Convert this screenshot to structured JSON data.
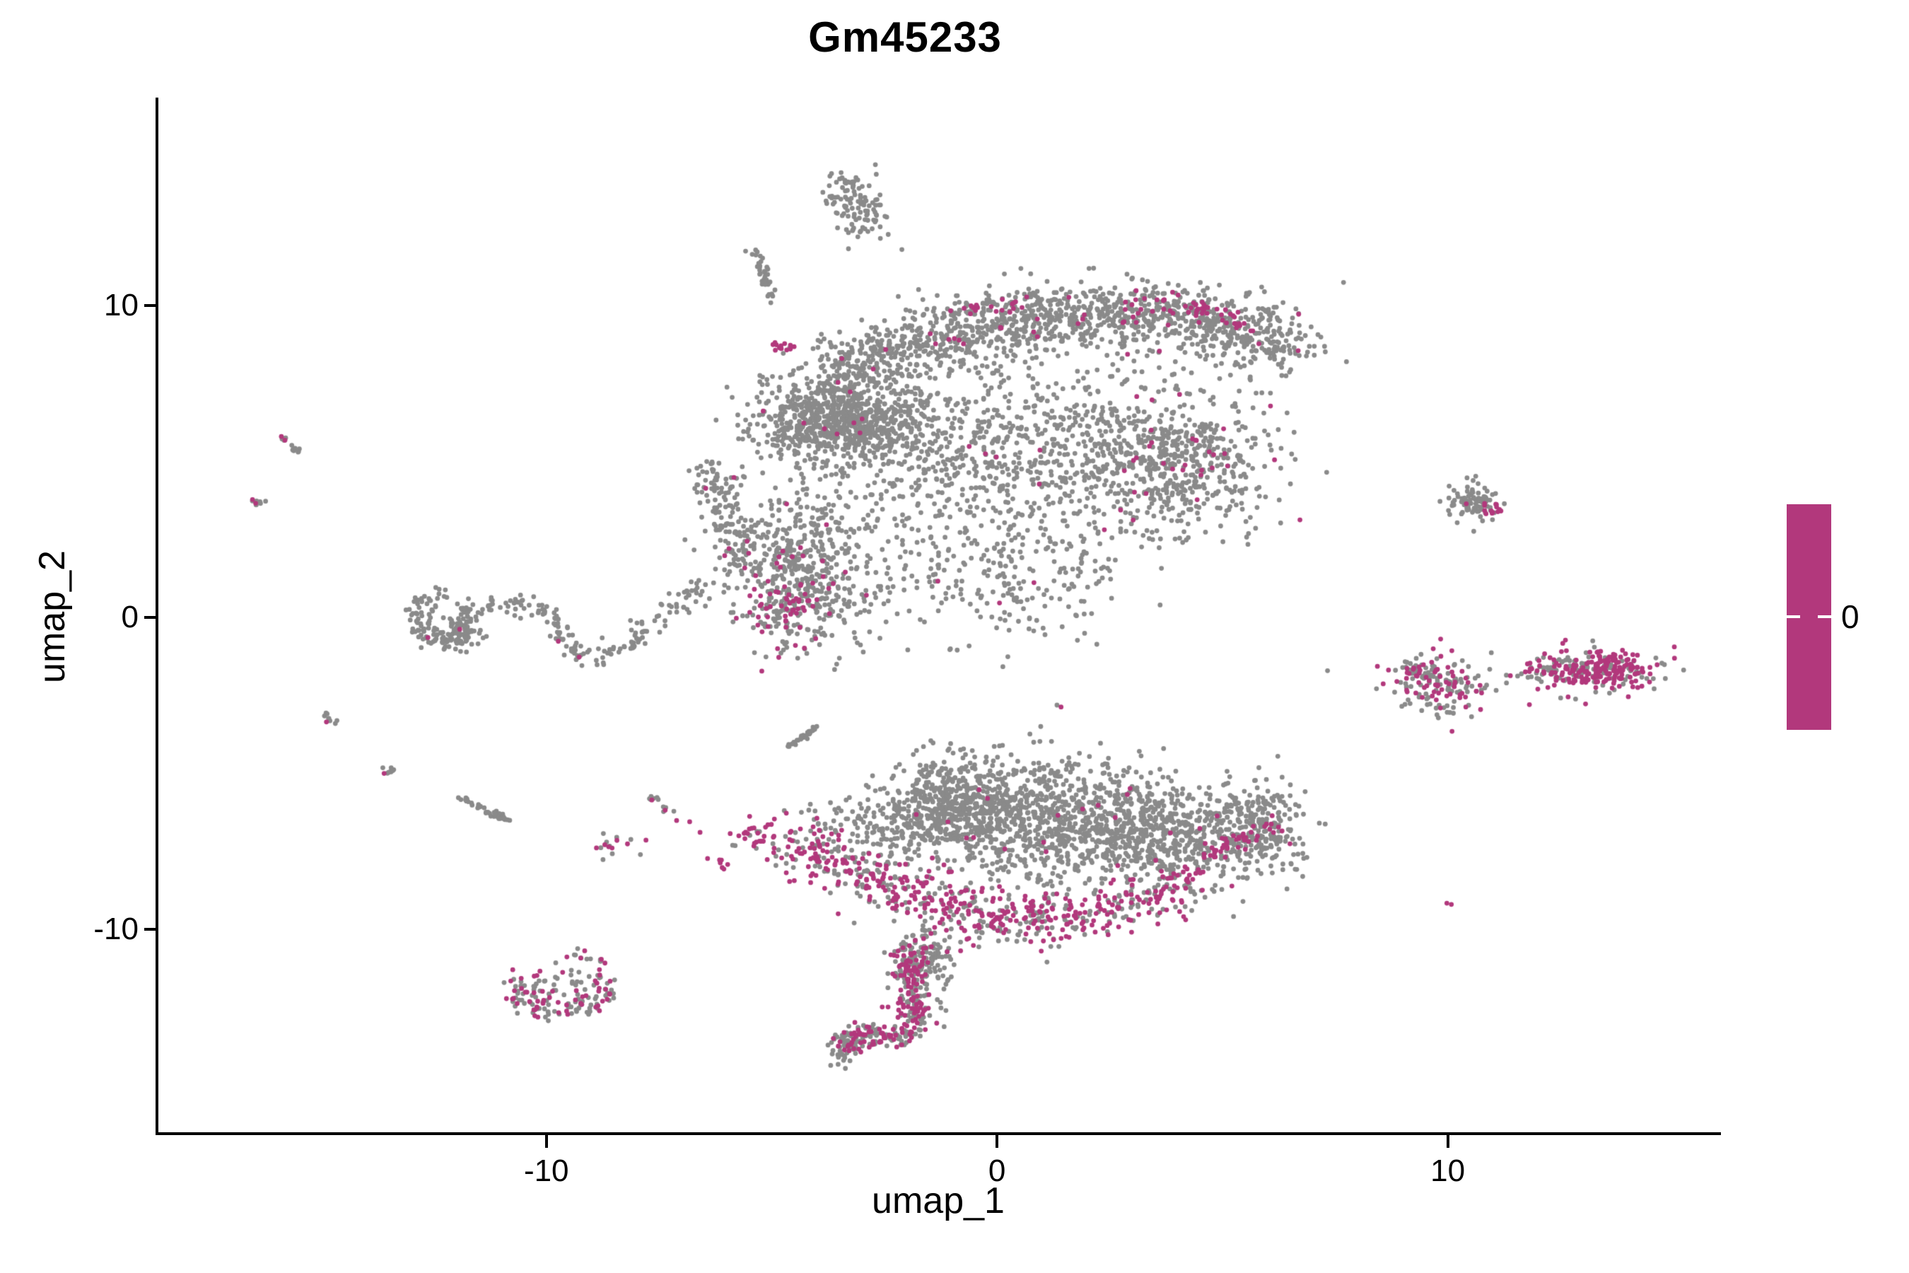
{
  "chart": {
    "title": "Gm45233",
    "x_label": "umap_1",
    "y_label": "umap_2",
    "legend": {
      "label": "0"
    }
  },
  "colors": {
    "gray": "#8A8A8A",
    "magenta": "#B2387C",
    "background": "#FFFFFF",
    "axis": "#000000"
  },
  "chart_data": {
    "type": "scatter",
    "title": "Gm45233",
    "xlabel": "umap_1",
    "ylabel": "umap_2",
    "x_ticks": [
      -10,
      0,
      10
    ],
    "y_ticks": [
      -10,
      0,
      10
    ],
    "xlim": [
      -18.64,
      16.03
    ],
    "ylim": [
      -16.55,
      16.62
    ],
    "grid": false,
    "legend": {
      "type": "colorbar",
      "label": "0",
      "position": "right",
      "color": "#B2387C"
    },
    "series": [
      {
        "name": "expression-zero",
        "color": "gray"
      },
      {
        "name": "expression-positive",
        "color": "magenta"
      }
    ],
    "point_radius_px": 3.4,
    "seed": 42,
    "clusters": [
      {
        "name": "top-island-a",
        "t": "g",
        "cx": -3.3,
        "cy": 13.6,
        "sx": 0.3,
        "sy": 0.5,
        "n": 60,
        "mf": 0.02
      },
      {
        "name": "top-island-b",
        "t": "g",
        "cx": -2.95,
        "cy": 12.85,
        "sx": 0.32,
        "sy": 0.45,
        "n": 55,
        "mf": 0
      },
      {
        "name": "top-streak",
        "t": "l",
        "p": [
          [
            -5.4,
            11.75
          ],
          [
            -4.93,
            10.2
          ]
        ],
        "s": 0.07,
        "n": 36,
        "mf": 0
      },
      {
        "name": "main-knot",
        "t": "g",
        "cx": -3.55,
        "cy": 6.3,
        "sx": 0.92,
        "sy": 0.65,
        "n": 820,
        "mf": 0.008
      },
      {
        "name": "knot-magenta-patch",
        "t": "g",
        "cx": -4.8,
        "cy": 8.6,
        "sx": 0.14,
        "sy": 0.14,
        "n": 14,
        "mf": 0.85
      },
      {
        "name": "top-band",
        "t": "p",
        "p": [
          [
            -3.76,
            7.78
          ],
          [
            -2.2,
            8.57
          ],
          [
            -0.47,
            9.18
          ],
          [
            1.25,
            9.55
          ],
          [
            2.98,
            9.75
          ],
          [
            4.55,
            9.59
          ],
          [
            5.96,
            8.91
          ],
          [
            6.46,
            8.53
          ]
        ],
        "s": 0.55,
        "n": 1350,
        "mf": 0.03
      },
      {
        "name": "band-rim-magenta-right",
        "t": "p",
        "p": [
          [
            2.82,
            10.05
          ],
          [
            3.92,
            10.0
          ],
          [
            4.86,
            9.71
          ],
          [
            5.73,
            9.14
          ]
        ],
        "s": 0.18,
        "n": 70,
        "mf": 0.8
      },
      {
        "name": "band-rim-magenta-left",
        "t": "l",
        "p": [
          [
            -0.94,
            9.82
          ],
          [
            0.78,
            10.16
          ]
        ],
        "s": 0.16,
        "n": 30,
        "mf": 0.72
      },
      {
        "name": "fill-left",
        "t": "g",
        "cx": -0.94,
        "cy": 5.28,
        "sx": 1.3,
        "sy": 1.3,
        "n": 420,
        "mf": 0.012
      },
      {
        "name": "fill-mid",
        "t": "g",
        "cx": 2.35,
        "cy": 5.28,
        "sx": 1.4,
        "sy": 1.35,
        "n": 470,
        "mf": 0.02
      },
      {
        "name": "fill-right",
        "t": "g",
        "cx": 4.24,
        "cy": 5.06,
        "sx": 0.95,
        "sy": 1.15,
        "n": 420,
        "mf": 0.06
      },
      {
        "name": "fill-lower",
        "t": "g",
        "cx": 0.0,
        "cy": 1.4,
        "sx": 1.6,
        "sy": 1.05,
        "n": 260,
        "mf": 0.012
      },
      {
        "name": "mid-lobe",
        "t": "g",
        "cx": -4.25,
        "cy": 1.65,
        "sx": 0.78,
        "sy": 1.3,
        "n": 520,
        "mf": 0.03
      },
      {
        "name": "mid-lobe-magenta",
        "t": "g",
        "cx": -4.7,
        "cy": 0.2,
        "sx": 0.48,
        "sy": 0.55,
        "n": 110,
        "mf": 0.5
      },
      {
        "name": "neck",
        "t": "p",
        "p": [
          [
            -6.43,
            4.83
          ],
          [
            -5.96,
            3.02
          ],
          [
            -5.65,
            1.66
          ]
        ],
        "s": 0.28,
        "n": 130,
        "mf": 0.05
      },
      {
        "name": "hook-ring",
        "t": "r",
        "cx": -12.3,
        "cy": 0.0,
        "rx": 0.55,
        "ry": 0.8,
        "a0": 100,
        "a1": 400,
        "s": 0.13,
        "n": 110,
        "mf": 0.02
      },
      {
        "name": "hook-blob",
        "t": "g",
        "cx": -12.0,
        "cy": -0.5,
        "sx": 0.3,
        "sy": 0.32,
        "n": 70,
        "mf": 0.02
      },
      {
        "name": "hook-arm",
        "t": "p",
        "p": [
          [
            -11.61,
            0.07
          ],
          [
            -10.82,
            0.52
          ],
          [
            -10.04,
            0.25
          ],
          [
            -9.38,
            -1.11
          ],
          [
            -8.75,
            -1.41
          ],
          [
            -8.0,
            -0.57
          ],
          [
            -7.14,
            0.25
          ],
          [
            -6.43,
            1.16
          ]
        ],
        "s": 0.18,
        "n": 175,
        "mf": 0.02
      },
      {
        "name": "streak-s1",
        "t": "l",
        "p": [
          [
            -15.84,
            5.74
          ],
          [
            -15.53,
            5.24
          ]
        ],
        "s": 0.05,
        "n": 12,
        "mf": 0
      },
      {
        "name": "streak-s1-magenta",
        "t": "pts",
        "m": 1,
        "p": [
          [
            -15.88,
            5.8
          ],
          [
            -15.8,
            5.68
          ]
        ]
      },
      {
        "name": "dots-s2",
        "t": "g",
        "cx": -16.35,
        "cy": 3.72,
        "sx": 0.1,
        "sy": 0.08,
        "n": 7,
        "mf": 0
      },
      {
        "name": "dots-s2-magenta",
        "t": "pts",
        "m": 1,
        "p": [
          [
            -16.52,
            3.78
          ],
          [
            -16.45,
            3.66
          ]
        ]
      },
      {
        "name": "streak-s3",
        "t": "l",
        "p": [
          [
            -14.95,
            -3.11
          ],
          [
            -14.7,
            -3.4
          ]
        ],
        "s": 0.05,
        "n": 8,
        "mf": 0
      },
      {
        "name": "streak-s3-magenta",
        "t": "pts",
        "m": 1,
        "p": [
          [
            -14.88,
            -3.35
          ]
        ]
      },
      {
        "name": "blob-s4",
        "t": "g",
        "cx": -13.5,
        "cy": -4.9,
        "sx": 0.1,
        "sy": 0.08,
        "n": 8,
        "mf": 0
      },
      {
        "name": "blob-s4-magenta",
        "t": "pts",
        "m": 1,
        "p": [
          [
            -13.6,
            -5.0
          ]
        ]
      },
      {
        "name": "streak-s5",
        "t": "l",
        "p": [
          [
            -11.89,
            -5.8
          ],
          [
            -10.79,
            -6.58
          ]
        ],
        "s": 0.06,
        "n": 44,
        "mf": 0.02
      },
      {
        "name": "streak-s6",
        "t": "l",
        "p": [
          [
            -7.64,
            -5.76
          ],
          [
            -7.32,
            -6.21
          ]
        ],
        "s": 0.07,
        "n": 12,
        "mf": 0.3
      },
      {
        "name": "dots-s7-magenta",
        "t": "pts",
        "m": 1,
        "p": [
          [
            -7.11,
            -6.51
          ],
          [
            -6.82,
            -6.55
          ],
          [
            -6.59,
            -6.89
          ],
          [
            -7.79,
            -7.14
          ],
          [
            -8.2,
            -7.26
          ]
        ]
      },
      {
        "name": "clump-s7",
        "t": "g",
        "cx": -8.55,
        "cy": -7.3,
        "sx": 0.22,
        "sy": 0.16,
        "n": 14,
        "mf": 0.3
      },
      {
        "name": "clump-s8-magenta",
        "t": "g",
        "cx": -6.15,
        "cy": -7.89,
        "sx": 0.13,
        "sy": 0.13,
        "n": 7,
        "mf": 0.9
      },
      {
        "name": "mid-diagonal-streak",
        "t": "l",
        "p": [
          [
            -4.63,
            -4.17
          ],
          [
            -3.97,
            -3.45
          ]
        ],
        "s": 0.035,
        "n": 32,
        "mf": 0
      },
      {
        "name": "dot-pair-gray",
        "t": "pts",
        "m": 0,
        "p": [
          [
            1.33,
            -2.81
          ]
        ]
      },
      {
        "name": "dot-pair-magenta",
        "t": "pts",
        "m": 1,
        "p": [
          [
            1.42,
            -2.87
          ]
        ]
      },
      {
        "name": "wing-left",
        "t": "g",
        "cx": -1.1,
        "cy": -6.05,
        "sx": 0.72,
        "sy": 0.8,
        "n": 520,
        "mf": 0.01
      },
      {
        "name": "wing-center",
        "t": "g",
        "cx": 1.1,
        "cy": -6.5,
        "sx": 1.1,
        "sy": 1.0,
        "n": 750,
        "mf": 0.01
      },
      {
        "name": "wing-right",
        "t": "g",
        "cx": 3.76,
        "cy": -6.95,
        "sx": 1.1,
        "sy": 0.9,
        "n": 600,
        "mf": 0.015
      },
      {
        "name": "wing-tip",
        "t": "g",
        "cx": 5.8,
        "cy": -6.73,
        "sx": 0.55,
        "sy": 0.66,
        "n": 220,
        "mf": 0.02
      },
      {
        "name": "wing-rim-magenta",
        "t": "p",
        "p": [
          [
            6.48,
            -6.51
          ],
          [
            5.8,
            -6.96
          ],
          [
            5.02,
            -7.19
          ],
          [
            4.39,
            -7.98
          ],
          [
            3.92,
            -8.55
          ]
        ],
        "s": 0.13,
        "n": 60,
        "mf": 0.85
      },
      {
        "name": "lower-band",
        "t": "p",
        "p": [
          [
            -4.86,
            -7.19
          ],
          [
            -3.76,
            -7.76
          ],
          [
            -2.67,
            -8.55
          ],
          [
            -1.25,
            -9.0
          ],
          [
            0.16,
            -9.68
          ],
          [
            1.73,
            -9.68
          ],
          [
            3.29,
            -9.12
          ],
          [
            4.24,
            -8.44
          ]
        ],
        "s": 0.45,
        "n": 640,
        "mf": 0.62
      },
      {
        "name": "band-left-tip-magenta",
        "t": "g",
        "cx": -5.3,
        "cy": -6.9,
        "sx": 0.25,
        "sy": 0.2,
        "n": 25,
        "mf": 0.8
      },
      {
        "name": "above-band-gray",
        "t": "g",
        "cx": -2.82,
        "cy": -6.73,
        "sx": 0.8,
        "sy": 0.5,
        "n": 120,
        "mf": 0.05
      },
      {
        "name": "stem",
        "t": "p",
        "p": [
          [
            -1.96,
            -10.36
          ],
          [
            -2.01,
            -11.5
          ],
          [
            -1.91,
            -12.4
          ],
          [
            -1.8,
            -13.08
          ]
        ],
        "s": 0.22,
        "n": 200,
        "mf": 0.55
      },
      {
        "name": "stem-side-gray",
        "t": "g",
        "cx": -1.49,
        "cy": -11.04,
        "sx": 0.28,
        "sy": 0.79,
        "n": 90,
        "mf": 0.05
      },
      {
        "name": "tail",
        "t": "p",
        "p": [
          [
            -1.88,
            -13.2
          ],
          [
            -2.35,
            -13.54
          ],
          [
            -2.82,
            -13.36
          ],
          [
            -3.22,
            -13.54
          ],
          [
            -3.48,
            -13.83
          ]
        ],
        "s": 0.18,
        "n": 130,
        "mf": 0.45
      },
      {
        "name": "tail-tip-gray",
        "t": "g",
        "cx": -3.4,
        "cy": -13.75,
        "sx": 0.16,
        "sy": 0.3,
        "n": 40,
        "mf": 0.05
      },
      {
        "name": "crescent-ring",
        "t": "r",
        "cx": -9.69,
        "cy": -11.9,
        "rx": 1.0,
        "ry": 0.75,
        "a0": 150,
        "a1": 390,
        "s": 0.16,
        "n": 90,
        "mf": 0.3
      },
      {
        "name": "crescent-fill",
        "t": "g",
        "cx": -9.7,
        "cy": -12.05,
        "sx": 0.55,
        "sy": 0.35,
        "n": 60,
        "mf": 0.35
      },
      {
        "name": "crescent-chain",
        "t": "l",
        "p": [
          [
            -9.41,
            -10.82
          ],
          [
            -8.75,
            -11.04
          ]
        ],
        "s": 0.09,
        "n": 14,
        "mf": 0.2
      },
      {
        "name": "crescent-chain-magenta",
        "t": "pts",
        "m": 1,
        "p": [
          [
            -8.78,
            -10.96
          ],
          [
            -8.7,
            -11.08
          ]
        ]
      },
      {
        "name": "crescent-dot-magenta",
        "t": "pts",
        "m": 1,
        "p": [
          [
            -10.27,
            -11.5
          ]
        ]
      },
      {
        "name": "right-top-blob",
        "t": "g",
        "cx": 10.48,
        "cy": 3.7,
        "sx": 0.3,
        "sy": 0.28,
        "n": 90,
        "mf": 0.03
      },
      {
        "name": "right-top-blob-magenta",
        "t": "g",
        "cx": 10.98,
        "cy": 3.45,
        "sx": 0.13,
        "sy": 0.18,
        "n": 14,
        "mf": 0.9
      },
      {
        "name": "right-mid-left-blob",
        "t": "g",
        "cx": 9.88,
        "cy": -2.15,
        "sx": 0.55,
        "sy": 0.45,
        "n": 160,
        "mf": 0.38
      },
      {
        "name": "right-mid-left-tail",
        "t": "l",
        "p": [
          [
            9.0,
            -1.54
          ],
          [
            9.6,
            -1.9
          ]
        ],
        "s": 0.1,
        "n": 25,
        "mf": 0.12
      },
      {
        "name": "bridge-dots",
        "t": "pts",
        "m": 0,
        "p": [
          [
            11.3,
            -1.85
          ],
          [
            11.55,
            -1.88
          ],
          [
            11.78,
            -1.92
          ],
          [
            11.98,
            -1.95
          ]
        ]
      },
      {
        "name": "right-mid-right-blob",
        "t": "g",
        "cx": 13.1,
        "cy": -1.7,
        "sx": 0.75,
        "sy": 0.35,
        "n": 210,
        "mf": 0.5
      },
      {
        "name": "right-mid-right-magenta",
        "t": "g",
        "cx": 13.55,
        "cy": -1.62,
        "sx": 0.45,
        "sy": 0.28,
        "n": 90,
        "mf": 0.92
      },
      {
        "name": "right-mid-right-left-edge",
        "t": "l",
        "p": [
          [
            12.13,
            -1.63
          ],
          [
            12.5,
            -1.72
          ]
        ],
        "s": 0.08,
        "n": 12,
        "mf": 0.1
      },
      {
        "name": "right-lone-magenta",
        "t": "pts",
        "m": 1,
        "p": [
          [
            9.98,
            -9.16
          ],
          [
            10.08,
            -9.2
          ]
        ]
      }
    ]
  }
}
